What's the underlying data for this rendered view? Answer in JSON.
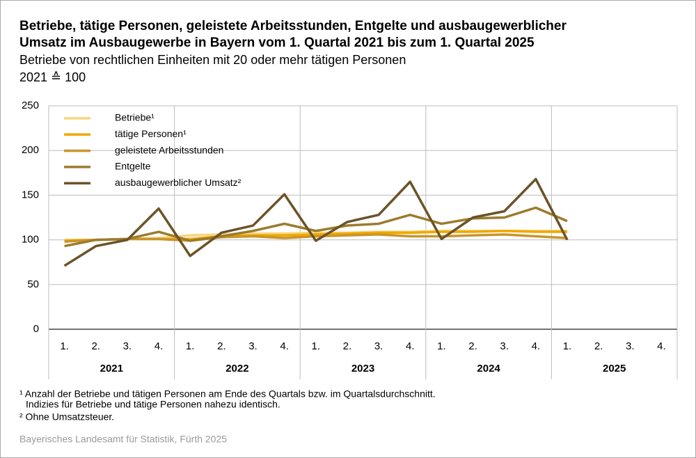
{
  "chart_data": {
    "type": "line",
    "title": [
      "Betriebe, tätige Personen, geleistete Arbeitsstunden, Entgelte und ausbaugewerblicher",
      "Umsatz im Ausbaugewerbe in Bayern vom 1. Quartal 2021 bis zum 1. Quartal 2025"
    ],
    "subtitle": [
      "Betriebe von rechtlichen Einheiten mit 20 oder mehr tätigen Personen",
      "2021 ≙ 100"
    ],
    "categories": [
      "1.",
      "2.",
      "3.",
      "4.",
      "1.",
      "2.",
      "3.",
      "4.",
      "1.",
      "2.",
      "3.",
      "4.",
      "1.",
      "2.",
      "3.",
      "4.",
      "1.",
      "2.",
      "3.",
      "4."
    ],
    "years": [
      "2021",
      "2022",
      "2023",
      "2024",
      "2025"
    ],
    "series": [
      {
        "name": "Betriebe¹",
        "color": "#f8d57e",
        "values": [
          100,
          100,
          101,
          102,
          105,
          106,
          107,
          107,
          108,
          108,
          109,
          109,
          110,
          110,
          110,
          110,
          110,
          null,
          null,
          null
        ]
      },
      {
        "name": "tätige Personen¹",
        "color": "#f0a800",
        "values": [
          99,
          100,
          101,
          101,
          101,
          104,
          105,
          105,
          106,
          107,
          108,
          108,
          109,
          109,
          110,
          109,
          109,
          null,
          null,
          null
        ]
      },
      {
        "name": "geleistete Arbeitsstunden",
        "color": "#c9952a",
        "values": [
          98,
          100,
          101,
          101,
          99,
          103,
          104,
          102,
          104,
          105,
          106,
          104,
          104,
          105,
          106,
          104,
          102,
          null,
          null,
          null
        ]
      },
      {
        "name": "Entgelte",
        "color": "#9b7c2e",
        "values": [
          93,
          100,
          101,
          109,
          99,
          104,
          110,
          118,
          110,
          116,
          118,
          128,
          118,
          124,
          125,
          136,
          121,
          null,
          null,
          null
        ]
      },
      {
        "name": "ausbaugewerblicher Umsatz²",
        "color": "#6b5328",
        "values": [
          71,
          93,
          100,
          135,
          82,
          108,
          116,
          151,
          99,
          120,
          128,
          165,
          101,
          125,
          132,
          168,
          100,
          null,
          null,
          null
        ]
      }
    ],
    "ylim": [
      0,
      250
    ],
    "yticks": [
      0,
      50,
      100,
      150,
      200,
      250
    ],
    "grid": true,
    "legend": "top-left",
    "footnotes": [
      "¹ Anzahl der Betriebe und tätigen Personen am Ende des Quartals bzw. im Quartalsdurchschnitt.",
      "Indizies für Betriebe und tätige Personen nahezu identisch.",
      "² Ohne Umsatzsteuer."
    ],
    "source": "Bayerisches Landesamt für Statistik, Fürth 2025"
  }
}
